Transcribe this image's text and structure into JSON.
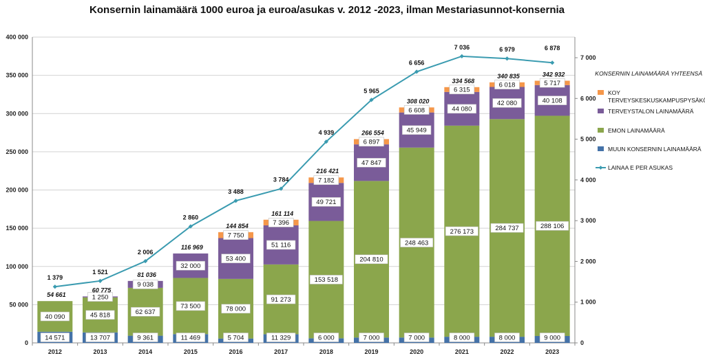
{
  "chart_data": {
    "type": "bar",
    "stacked": true,
    "title": "Konsernin lainamäärä 1000 euroa ja euroa/asukas v. 2012 -2023, ilman Mestariasunnot-konsernia",
    "categories": [
      "2012",
      "2013",
      "2014",
      "2015",
      "2016",
      "2017",
      "2018",
      "2019",
      "2020",
      "2021",
      "2022",
      "2023"
    ],
    "series": [
      {
        "name": "MUUN KONSERNIN LAINAMÄÄRÄ",
        "color": "#4472a8",
        "values": [
          14571,
          13707,
          9361,
          11469,
          5704,
          11329,
          6000,
          7000,
          7000,
          8000,
          8000,
          9000
        ],
        "labels": [
          "14 571",
          "13 707",
          "9 361",
          "11 469",
          "5 704",
          "11 329",
          "6 000",
          "7 000",
          "7 000",
          "8 000",
          "8 000",
          "9 000"
        ]
      },
      {
        "name": "EMON LAINAMÄÄRÄ",
        "color": "#8ba64c",
        "values": [
          40090,
          45818,
          62637,
          73500,
          78000,
          91273,
          153518,
          204810,
          248463,
          276173,
          284737,
          288106
        ],
        "labels": [
          "40 090",
          "45 818",
          "62 637",
          "73 500",
          "78 000",
          "91 273",
          "153 518",
          "204 810",
          "248 463",
          "276 173",
          "284 737",
          "288 106"
        ]
      },
      {
        "name": "TERVEYSTALON LAINAMÄÄRÄ",
        "color": "#7a5c99",
        "values": [
          0,
          1250,
          9038,
          32000,
          53400,
          51116,
          49721,
          47847,
          45949,
          44080,
          42080,
          40108
        ],
        "labels": [
          "",
          "1 250",
          "9 038",
          "32 000",
          "53 400",
          "51 116",
          "49 721",
          "47 847",
          "45 949",
          "44 080",
          "42 080",
          "40 108"
        ]
      },
      {
        "name": "KOY TERVEYSKESKUSKAMPUSPYSÄKÖINTI",
        "color": "#f5974a",
        "values": [
          0,
          0,
          0,
          0,
          7750,
          7396,
          7182,
          6897,
          6608,
          6315,
          6018,
          5717
        ],
        "labels": [
          "",
          "",
          "",
          "",
          "7 750",
          "7 396",
          "7 182",
          "6 897",
          "6 608",
          "6 315",
          "6 018",
          "5 717"
        ]
      }
    ],
    "totals": {
      "name": "KONSERNIN LAINAMÄÄRÄ YHTEENSÄ",
      "values": [
        54661,
        60775,
        81036,
        116969,
        144854,
        161114,
        216421,
        266554,
        308020,
        334568,
        340835,
        342932
      ],
      "labels": [
        "54 661",
        "60 775",
        "81 036",
        "116 969",
        "144 854",
        "161 114",
        "216 421",
        "266 554",
        "308 020",
        "334 568",
        "340 835",
        "342 932"
      ]
    },
    "line": {
      "name": "LAINAA E PER ASUKAS",
      "color": "#3a9bb0",
      "axis": "right",
      "values": [
        1379,
        1521,
        2006,
        2860,
        3488,
        3784,
        4939,
        5965,
        6656,
        7036,
        6979,
        6878
      ],
      "labels": [
        "1 379",
        "1 521",
        "2 006",
        "2 860",
        "3 488",
        "3 784",
        "4 939",
        "5 965",
        "6 656",
        "7 036",
        "6 979",
        "6 878"
      ]
    },
    "y_left": {
      "min": 0,
      "max": 400000,
      "step": 50000,
      "ticks": [
        "0",
        "50 000",
        "100 000",
        "150 000",
        "200 000",
        "250 000",
        "300 000",
        "350 000",
        "400 000"
      ]
    },
    "y_right": {
      "min": 0,
      "max": 7000,
      "ticks": [
        "0",
        "1 000",
        "2 000",
        "3 000",
        "4 000",
        "5 000",
        "6 000",
        "7 000"
      ]
    },
    "legend": {
      "title": "KONSERNIN LAINAMÄÄRÄ YHTEENSÄ",
      "items": [
        {
          "lines": [
            "KOY",
            "TERVEYSKESKUSKAMPUSPYSÄKÖINTI"
          ],
          "color": "#f5974a",
          "kind": "box"
        },
        {
          "lines": [
            "TERVEYSTALON LAINAMÄÄRÄ"
          ],
          "color": "#7a5c99",
          "kind": "box"
        },
        {
          "lines": [
            "EMON LAINAMÄÄRÄ"
          ],
          "color": "#8ba64c",
          "kind": "box"
        },
        {
          "lines": [
            "MUUN KONSERNIN LAINAMÄÄRÄ"
          ],
          "color": "#4472a8",
          "kind": "box"
        },
        {
          "lines": [
            "LAINAA E PER ASUKAS"
          ],
          "color": "#3a9bb0",
          "kind": "line"
        }
      ]
    },
    "grid": true
  }
}
